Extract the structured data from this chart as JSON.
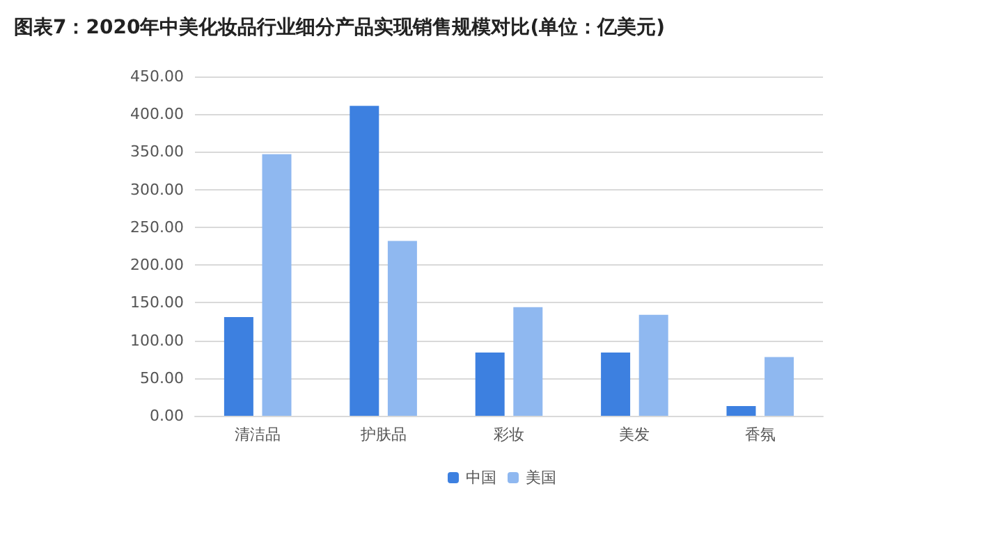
{
  "chart_data": {
    "type": "bar",
    "title": "图表7：2020年中美化妆品行业细分产品实现销售规模对比(单位：亿美元)",
    "categories": [
      "清洁品",
      "护肤品",
      "彩妆",
      "美发",
      "香氛"
    ],
    "series": [
      {
        "name": "中国",
        "color": "#3d80e0",
        "values": [
          131,
          411,
          84,
          84,
          13
        ]
      },
      {
        "name": "美国",
        "color": "#8fb8f0",
        "values": [
          347,
          232,
          144,
          134,
          78
        ]
      }
    ],
    "ylim": [
      0,
      450
    ],
    "yticks": [
      {
        "value": 0,
        "label": "0.00"
      },
      {
        "value": 50,
        "label": "50.00"
      },
      {
        "value": 100,
        "label": "100.00"
      },
      {
        "value": 150,
        "label": "150.00"
      },
      {
        "value": 200,
        "label": "200.00"
      },
      {
        "value": 250,
        "label": "250.00"
      },
      {
        "value": 300,
        "label": "300.00"
      },
      {
        "value": 350,
        "label": "350.00"
      },
      {
        "value": 400,
        "label": "400.00"
      },
      {
        "value": 450,
        "label": "450.00"
      }
    ],
    "grid": "y",
    "legend": "bottom"
  }
}
